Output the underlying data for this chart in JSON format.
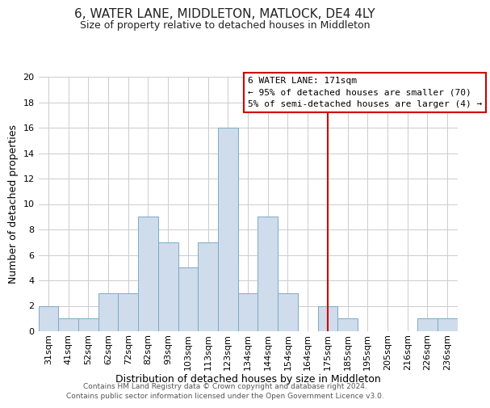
{
  "title": "6, WATER LANE, MIDDLETON, MATLOCK, DE4 4LY",
  "subtitle": "Size of property relative to detached houses in Middleton",
  "xlabel": "Distribution of detached houses by size in Middleton",
  "ylabel": "Number of detached properties",
  "footer_line1": "Contains HM Land Registry data © Crown copyright and database right 2024.",
  "footer_line2": "Contains public sector information licensed under the Open Government Licence v3.0.",
  "bin_labels": [
    "31sqm",
    "41sqm",
    "52sqm",
    "62sqm",
    "72sqm",
    "82sqm",
    "93sqm",
    "103sqm",
    "113sqm",
    "123sqm",
    "134sqm",
    "144sqm",
    "154sqm",
    "164sqm",
    "175sqm",
    "185sqm",
    "195sqm",
    "205sqm",
    "216sqm",
    "226sqm",
    "236sqm"
  ],
  "bar_heights": [
    2,
    1,
    1,
    3,
    3,
    9,
    7,
    5,
    7,
    16,
    3,
    9,
    3,
    0,
    2,
    1,
    0,
    0,
    0,
    1,
    1
  ],
  "bar_color": "#cfdceb",
  "bar_edge_color": "#7aaac8",
  "ylim": [
    0,
    20
  ],
  "yticks": [
    0,
    2,
    4,
    6,
    8,
    10,
    12,
    14,
    16,
    18,
    20
  ],
  "vline_x_index": 14,
  "vline_color": "#cc0000",
  "annotation_title": "6 WATER LANE: 171sqm",
  "annotation_line1": "← 95% of detached houses are smaller (70)",
  "annotation_line2": "5% of semi-detached houses are larger (4) →",
  "annotation_box_color": "#cc0000",
  "bg_color": "#ffffff",
  "grid_color": "#cccccc",
  "title_fontsize": 11,
  "subtitle_fontsize": 9,
  "xlabel_fontsize": 9,
  "ylabel_fontsize": 9,
  "tick_fontsize": 8,
  "annotation_fontsize": 8,
  "footer_fontsize": 6.5
}
